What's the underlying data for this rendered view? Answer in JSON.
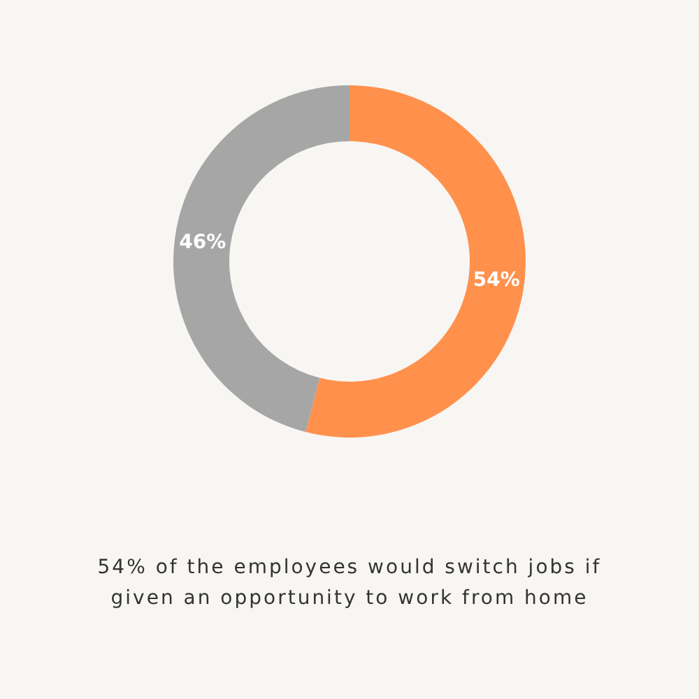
{
  "chart_data": {
    "type": "donut",
    "categories": [
      null,
      null
    ],
    "values": [
      54,
      46
    ],
    "colors": [
      "#ff914d",
      "#a6a6a6"
    ],
    "value_labels": [
      "54%",
      "46%"
    ],
    "annotations": [
      "54% of the employees would switch jobs if given an opportunity to work from home"
    ]
  }
}
